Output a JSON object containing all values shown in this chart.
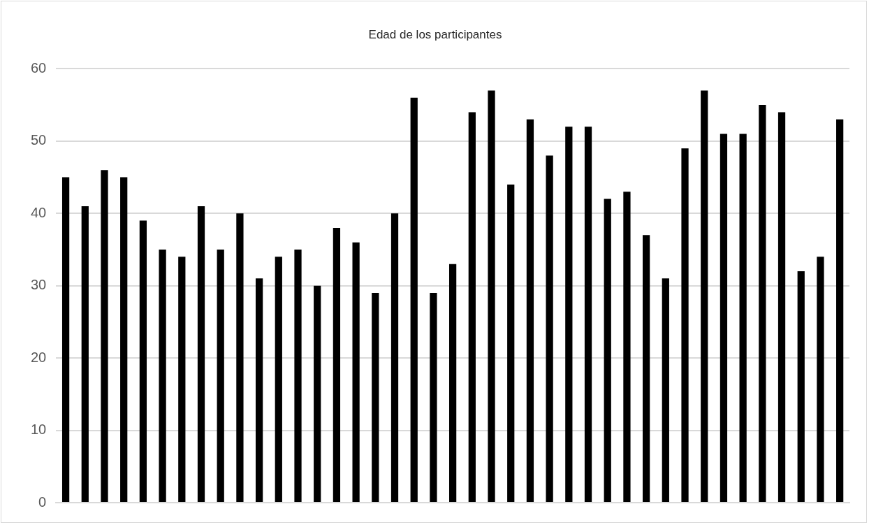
{
  "chart_data": {
    "type": "bar",
    "title": "Edad de los participantes",
    "categories": [
      null,
      null,
      null,
      null,
      null,
      null,
      null,
      null,
      null,
      null,
      null,
      null,
      null,
      null,
      null,
      null,
      null,
      null,
      null,
      null,
      null,
      null,
      null,
      null,
      null,
      null,
      null,
      null,
      null,
      null,
      null,
      null,
      null,
      null,
      null,
      null,
      null,
      null,
      null,
      null,
      null
    ],
    "values": [
      45,
      41,
      46,
      45,
      39,
      35,
      34,
      41,
      35,
      40,
      31,
      34,
      35,
      30,
      38,
      36,
      29,
      40,
      56,
      29,
      33,
      54,
      57,
      44,
      53,
      48,
      52,
      52,
      42,
      43,
      37,
      31,
      49,
      57,
      51,
      51,
      55,
      54,
      32,
      34,
      53
    ],
    "color": "#000000",
    "ylim": [
      0,
      60
    ],
    "yticks": [
      0,
      10,
      20,
      30,
      40,
      50,
      60
    ],
    "grid": "y",
    "tick_labels": "y"
  }
}
